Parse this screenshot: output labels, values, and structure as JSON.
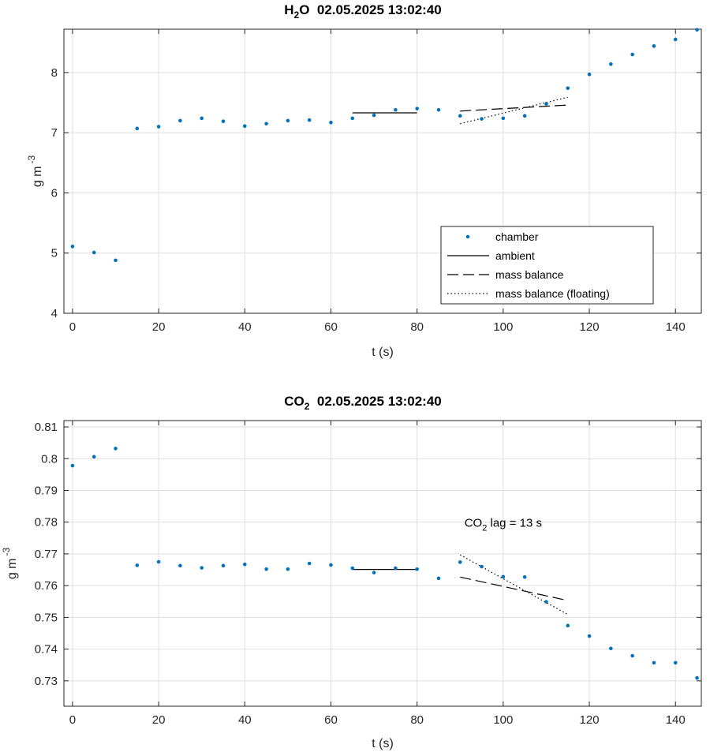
{
  "chart_data": [
    {
      "type": "scatter",
      "title": {
        "base": "H",
        "sub": "2",
        "rest": "O  02.05.2025 13:02:40"
      },
      "xlabel": "t (s)",
      "ylabel": {
        "base": "g m",
        "sup": "-3"
      },
      "xlim": [
        -2,
        146
      ],
      "ylim": [
        4,
        8.72
      ],
      "xticks": [
        0,
        20,
        40,
        60,
        80,
        100,
        120,
        140
      ],
      "yticks": [
        4,
        5,
        6,
        7,
        8
      ],
      "grid": true,
      "legend_position": "bottom-right",
      "legend": [
        "chamber",
        "ambient",
        "mass balance",
        "mass balance (floating)"
      ],
      "series": [
        {
          "name": "chamber",
          "style": "dots",
          "color": "#0072bd",
          "x": [
            0,
            5,
            10,
            15,
            20,
            25,
            30,
            35,
            40,
            45,
            50,
            55,
            60,
            65,
            70,
            75,
            80,
            85,
            90,
            95,
            100,
            105,
            110,
            115,
            120,
            125,
            130,
            135,
            140,
            145
          ],
          "y": [
            5.11,
            5.01,
            4.88,
            7.07,
            7.1,
            7.2,
            7.24,
            7.19,
            7.11,
            7.15,
            7.2,
            7.21,
            7.17,
            7.24,
            7.29,
            7.38,
            7.4,
            7.38,
            7.28,
            7.23,
            7.24,
            7.28,
            7.48,
            7.74,
            7.97,
            8.14,
            8.3,
            8.44,
            8.55,
            8.71
          ]
        },
        {
          "name": "ambient",
          "style": "solid",
          "color": "#000000",
          "x": [
            65,
            80
          ],
          "y": [
            7.33,
            7.33
          ]
        },
        {
          "name": "mass balance",
          "style": "dashed",
          "color": "#000000",
          "x": [
            90,
            115
          ],
          "y": [
            7.36,
            7.46
          ]
        },
        {
          "name": "mass balance (floating)",
          "style": "dotted",
          "color": "#000000",
          "x": [
            90,
            115
          ],
          "y": [
            7.15,
            7.59
          ]
        }
      ]
    },
    {
      "type": "scatter",
      "title": {
        "base": "CO",
        "sub": "2",
        "rest": "  02.05.2025 13:02:40"
      },
      "xlabel": "t (s)",
      "ylabel": {
        "base": "g m",
        "sup": "-3"
      },
      "xlim": [
        -2,
        146
      ],
      "ylim": [
        0.722,
        0.812
      ],
      "xticks": [
        0,
        20,
        40,
        60,
        80,
        100,
        120,
        140
      ],
      "yticks": [
        0.73,
        0.74,
        0.75,
        0.76,
        0.77,
        0.78,
        0.79,
        0.8,
        0.81
      ],
      "grid": true,
      "annotation": {
        "base": "CO",
        "sub": "2",
        "rest": " lag = 13 s",
        "x": 91,
        "y": 0.7785
      },
      "series": [
        {
          "name": "chamber",
          "style": "dots",
          "color": "#0072bd",
          "x": [
            0,
            5,
            10,
            15,
            20,
            25,
            30,
            35,
            40,
            45,
            50,
            55,
            60,
            65,
            70,
            75,
            80,
            85,
            90,
            95,
            100,
            105,
            110,
            115,
            120,
            125,
            130,
            135,
            140,
            145
          ],
          "y": [
            0.7978,
            0.8006,
            0.8032,
            0.7664,
            0.7675,
            0.7663,
            0.7656,
            0.7663,
            0.7667,
            0.7652,
            0.7652,
            0.767,
            0.7665,
            0.7655,
            0.7641,
            0.7655,
            0.7652,
            0.7623,
            0.7674,
            0.766,
            0.7628,
            0.7627,
            0.7549,
            0.7474,
            0.7441,
            0.7402,
            0.7379,
            0.7357,
            0.7357,
            0.7309
          ]
        },
        {
          "name": "ambient",
          "style": "solid",
          "color": "#000000",
          "x": [
            65,
            80
          ],
          "y": [
            0.7651,
            0.7651
          ]
        },
        {
          "name": "mass balance",
          "style": "dashed",
          "color": "#000000",
          "x": [
            90,
            115
          ],
          "y": [
            0.7627,
            0.7553
          ]
        },
        {
          "name": "mass balance (floating)",
          "style": "dotted",
          "color": "#000000",
          "x": [
            90,
            115
          ],
          "y": [
            0.7697,
            0.7509
          ]
        }
      ]
    }
  ]
}
